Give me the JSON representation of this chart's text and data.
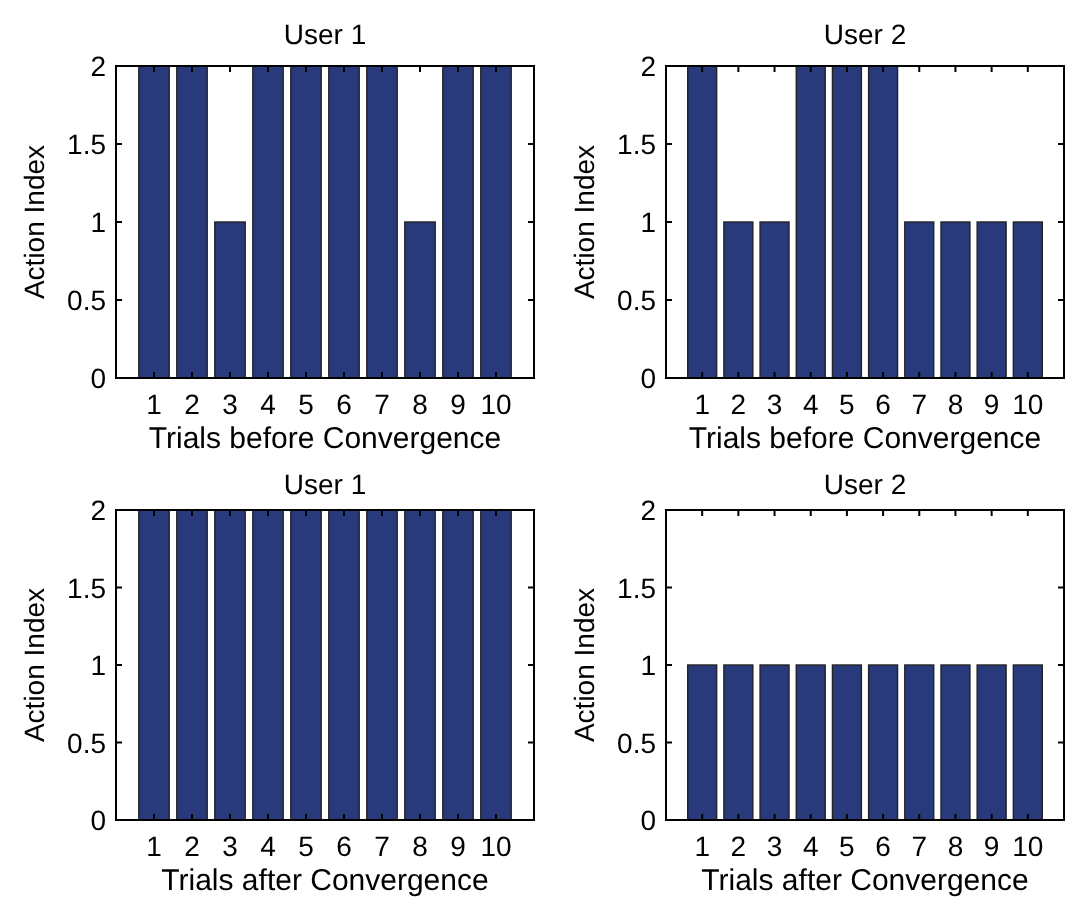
{
  "chart_data": [
    {
      "type": "bar",
      "title": "User 1",
      "xlabel": "Trials before Convergence",
      "ylabel": "Action Index",
      "categories": [
        "1",
        "2",
        "3",
        "4",
        "5",
        "6",
        "7",
        "8",
        "9",
        "10"
      ],
      "values": [
        2,
        2,
        1,
        2,
        2,
        2,
        2,
        1,
        2,
        2
      ],
      "color": "#283a7c",
      "ylim": [
        0,
        2
      ],
      "yticks": [
        0,
        0.5,
        1,
        1.5,
        2
      ]
    },
    {
      "type": "bar",
      "title": "User 2",
      "xlabel": "Trials before Convergence",
      "ylabel": "Action Index",
      "categories": [
        "1",
        "2",
        "3",
        "4",
        "5",
        "6",
        "7",
        "8",
        "9",
        "10"
      ],
      "values": [
        2,
        1,
        1,
        2,
        2,
        2,
        1,
        1,
        1,
        1
      ],
      "color": "#283a7c",
      "ylim": [
        0,
        2
      ],
      "yticks": [
        0,
        0.5,
        1,
        1.5,
        2
      ]
    },
    {
      "type": "bar",
      "title": "User 1",
      "xlabel": "Trials after Convergence",
      "ylabel": "Action Index",
      "categories": [
        "1",
        "2",
        "3",
        "4",
        "5",
        "6",
        "7",
        "8",
        "9",
        "10"
      ],
      "values": [
        2,
        2,
        2,
        2,
        2,
        2,
        2,
        2,
        2,
        2
      ],
      "color": "#283a7c",
      "ylim": [
        0,
        2
      ],
      "yticks": [
        0,
        0.5,
        1,
        1.5,
        2
      ]
    },
    {
      "type": "bar",
      "title": "User 2",
      "xlabel": "Trials after Convergence",
      "ylabel": "Action Index",
      "categories": [
        "1",
        "2",
        "3",
        "4",
        "5",
        "6",
        "7",
        "8",
        "9",
        "10"
      ],
      "values": [
        1,
        1,
        1,
        1,
        1,
        1,
        1,
        1,
        1,
        1
      ],
      "color": "#283a7c",
      "ylim": [
        0,
        2
      ],
      "yticks": [
        0,
        0.5,
        1,
        1.5,
        2
      ]
    }
  ]
}
